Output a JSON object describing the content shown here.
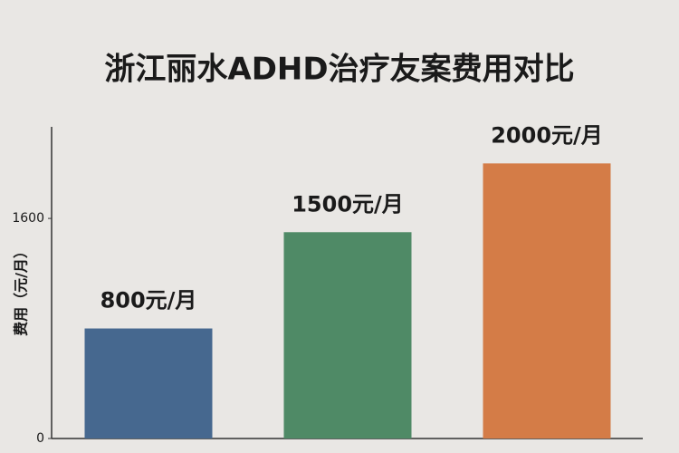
{
  "chart_data": {
    "type": "bar",
    "title": "浙江丽水ADHD治疗友案费用对比",
    "y_label": "费用（元/月）",
    "categories": [
      null,
      null,
      null
    ],
    "values": [
      800,
      1500,
      2000
    ],
    "value_labels": [
      "800元/月",
      "1500元/月",
      "2000元/月"
    ],
    "colors": [
      "#46688f",
      "#4f8a66",
      "#d47c47"
    ],
    "ylim": [
      0,
      2200
    ],
    "yticks": [
      0,
      1600
    ],
    "grid": false
  }
}
